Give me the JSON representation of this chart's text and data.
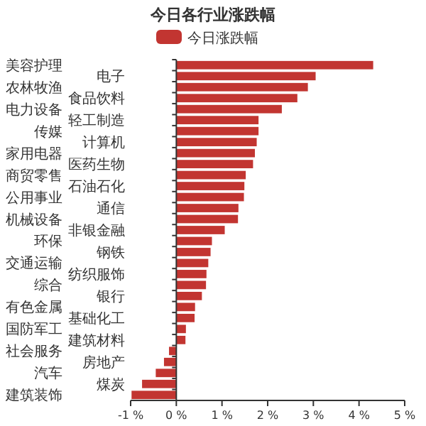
{
  "chart_data": {
    "type": "bar",
    "orientation": "horizontal",
    "title": "今日各行业涨跌幅",
    "categories": [
      "美容护理",
      "电子",
      "农林牧渔",
      "食品饮料",
      "电力设备",
      "轻工制造",
      "传媒",
      "计算机",
      "家用电器",
      "医药生物",
      "商贸零售",
      "石油石化",
      "公用事业",
      "通信",
      "机械设备",
      "非银金融",
      "环保",
      "钢铁",
      "交通运输",
      "纺织服饰",
      "综合",
      "银行",
      "有色金属",
      "基础化工",
      "国防军工",
      "建筑材料",
      "社会服务",
      "房地产",
      "汽车",
      "煤炭",
      "建筑装饰"
    ],
    "series": [
      {
        "name": "今日涨跌幅",
        "color": "#c23531",
        "values": [
          4.31,
          3.05,
          2.88,
          2.65,
          2.31,
          1.8,
          1.8,
          1.76,
          1.72,
          1.68,
          1.52,
          1.49,
          1.48,
          1.36,
          1.35,
          1.06,
          0.78,
          0.75,
          0.7,
          0.66,
          0.65,
          0.56,
          0.41,
          0.4,
          0.21,
          0.2,
          -0.16,
          -0.27,
          -0.45,
          -0.75,
          -0.98
        ]
      }
    ],
    "xlim": [
      -1,
      5
    ],
    "xticks": [
      {
        "value": -1,
        "label": "-1 %"
      },
      {
        "value": 0,
        "label": "0 %"
      },
      {
        "value": 1,
        "label": "1 %"
      },
      {
        "value": 2,
        "label": "2 %"
      },
      {
        "value": 3,
        "label": "3 %"
      },
      {
        "value": 4,
        "label": "4 %"
      },
      {
        "value": 5,
        "label": "5 %"
      }
    ],
    "legend": "top"
  }
}
